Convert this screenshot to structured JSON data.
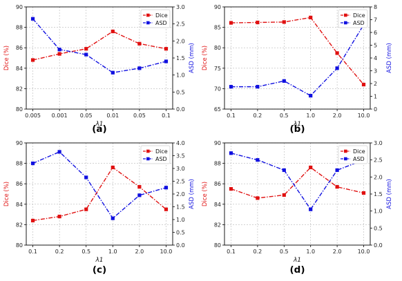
{
  "colors": {
    "dice": "#e01010",
    "asd": "#1010e0",
    "grid": "#b8b8b8"
  },
  "chart_data": [
    {
      "type": "line",
      "panel_label": "(a)",
      "categories": [
        "0.005",
        "0.001",
        "0.05",
        "0.01",
        "0.05",
        "0.1"
      ],
      "xlabel": "λ1",
      "ylabel_left": "Dice (%)",
      "ylabel_right": "ASD (mm)",
      "ylim_left": [
        80,
        90
      ],
      "yticks_left": [
        "80",
        "82",
        "84",
        "86",
        "88",
        "90"
      ],
      "ylim_right": [
        0,
        3.0
      ],
      "yticks_right": [
        "0.0",
        "0.5",
        "1.0",
        "1.5",
        "2.0",
        "2.5",
        "3.0"
      ],
      "legend": [
        "Dice",
        "ASD"
      ],
      "legend_position": "top-right",
      "grid": true,
      "series": [
        {
          "name": "Dice",
          "axis": "left",
          "values": [
            84.8,
            85.4,
            85.9,
            87.6,
            86.4,
            85.9
          ]
        },
        {
          "name": "ASD",
          "axis": "right",
          "values": [
            2.65,
            1.75,
            1.6,
            1.07,
            1.2,
            1.4
          ]
        }
      ]
    },
    {
      "type": "line",
      "panel_label": "(b)",
      "categories": [
        "0.1",
        "0.2",
        "0.5",
        "1.0",
        "2.0",
        "10.0"
      ],
      "xlabel": "λ1",
      "ylabel_left": "Dice (%)",
      "ylabel_right": "ASD (mm)",
      "ylim_left": [
        65,
        90
      ],
      "yticks_left": [
        "65",
        "70",
        "75",
        "80",
        "85",
        "90"
      ],
      "ylim_right": [
        0,
        8
      ],
      "yticks_right": [
        "0",
        "1",
        "2",
        "3",
        "4",
        "5",
        "6",
        "7",
        "8"
      ],
      "legend": [
        "Dice",
        "ASD"
      ],
      "legend_position": "top-right",
      "grid": true,
      "series": [
        {
          "name": "Dice",
          "axis": "left",
          "values": [
            86.1,
            86.2,
            86.3,
            87.4,
            78.7,
            71.0
          ]
        },
        {
          "name": "ASD",
          "axis": "right",
          "values": [
            1.75,
            1.75,
            2.2,
            1.05,
            3.2,
            6.6
          ]
        }
      ]
    },
    {
      "type": "line",
      "panel_label": "(c)",
      "categories": [
        "0.1",
        "0.2",
        "0.5",
        "1.0",
        "2.0",
        "10.0"
      ],
      "xlabel": "λ1",
      "ylabel_left": "Dice (%)",
      "ylabel_right": "ASD (mm)",
      "ylim_left": [
        80,
        90
      ],
      "yticks_left": [
        "80",
        "82",
        "84",
        "86",
        "88",
        "90"
      ],
      "ylim_right": [
        0,
        4.0
      ],
      "yticks_right": [
        "0.0",
        "0.5",
        "1.0",
        "1.5",
        "2.0",
        "2.5",
        "3.0",
        "3.5",
        "4.0"
      ],
      "legend": [
        "Dice",
        "ASD"
      ],
      "legend_position": "top-right",
      "grid": true,
      "series": [
        {
          "name": "Dice",
          "axis": "left",
          "values": [
            82.4,
            82.8,
            83.5,
            87.6,
            85.7,
            83.5
          ]
        },
        {
          "name": "ASD",
          "axis": "right",
          "values": [
            3.2,
            3.65,
            2.65,
            1.05,
            1.95,
            2.25
          ]
        }
      ]
    },
    {
      "type": "line",
      "panel_label": "(d)",
      "categories": [
        "0.1",
        "0.2",
        "0.5",
        "1.0",
        "2.0",
        "10.0"
      ],
      "xlabel": "λ1",
      "ylabel_left": "Dice (%)",
      "ylabel_right": "ASD (mm)",
      "ylim_left": [
        80,
        90
      ],
      "yticks_left": [
        "80",
        "82",
        "84",
        "86",
        "88",
        "90"
      ],
      "ylim_right": [
        0,
        3.0
      ],
      "yticks_right": [
        "0.0",
        "0.5",
        "1.0",
        "1.5",
        "2.0",
        "2.5",
        "3.0"
      ],
      "legend": [
        "Dice",
        "ASD"
      ],
      "legend_position": "top-right",
      "grid": true,
      "series": [
        {
          "name": "Dice",
          "axis": "left",
          "values": [
            85.5,
            84.6,
            84.9,
            87.6,
            85.7,
            85.1
          ]
        },
        {
          "name": "ASD",
          "axis": "right",
          "values": [
            2.7,
            2.5,
            2.2,
            1.05,
            2.2,
            2.5
          ]
        }
      ]
    }
  ]
}
